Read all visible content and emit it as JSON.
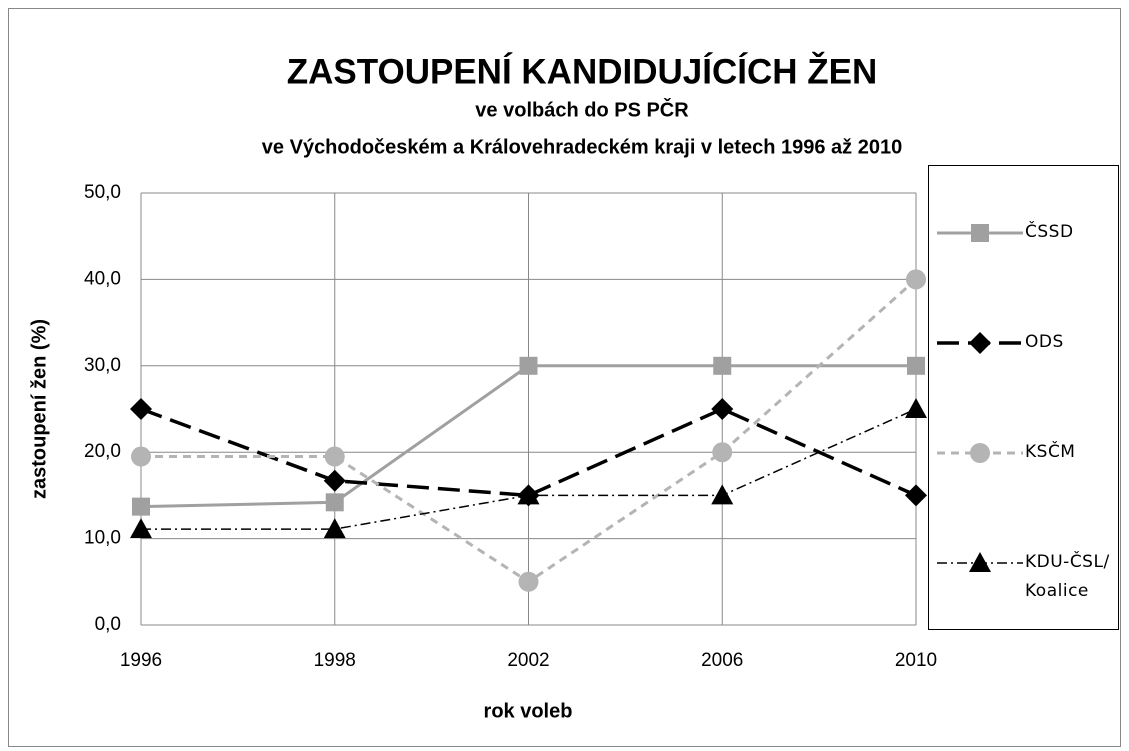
{
  "chart_data": {
    "type": "line",
    "title": "ZASTOUPENÍ KANDIDUJÍCÍCH ŽEN",
    "subtitle": [
      "ve volbách do PS PČR",
      "ve Východočeském a Královehradeckém kraji v letech 1996 až 2010"
    ],
    "x_label": "rok voleb",
    "y_label": "zastoupení žen (%)",
    "categories": [
      "1996",
      "1998",
      "2002",
      "2006",
      "2010"
    ],
    "ylim": [
      0,
      50
    ],
    "yticks": [
      {
        "value": 0,
        "label": "0,0"
      },
      {
        "value": 10,
        "label": "10,0"
      },
      {
        "value": 20,
        "label": "20,0"
      },
      {
        "value": 30,
        "label": "30,0"
      },
      {
        "value": 40,
        "label": "40,0"
      },
      {
        "value": 50,
        "label": "50,0"
      }
    ],
    "grid": true,
    "legend": "right",
    "series": [
      {
        "name": "ČSSD",
        "color": "#a0a0a0",
        "marker": "square",
        "dash": "solid",
        "values": [
          13.7,
          14.2,
          30,
          30,
          30
        ]
      },
      {
        "name": "ODS",
        "color": "#000000",
        "marker": "diamond",
        "dash": "long-dash",
        "values": [
          25,
          16.7,
          15,
          25,
          15
        ]
      },
      {
        "name": "KSČM",
        "color": "#b4b4b4",
        "marker": "circle",
        "dash": "dash",
        "values": [
          19.5,
          19.5,
          5,
          20,
          40
        ]
      },
      {
        "name": "KDU-ČSL/ Koalice",
        "color": "#000000",
        "marker": "triangle",
        "dash": "dash-dot",
        "values": [
          11.1,
          11.1,
          15,
          15,
          25
        ]
      }
    ]
  }
}
